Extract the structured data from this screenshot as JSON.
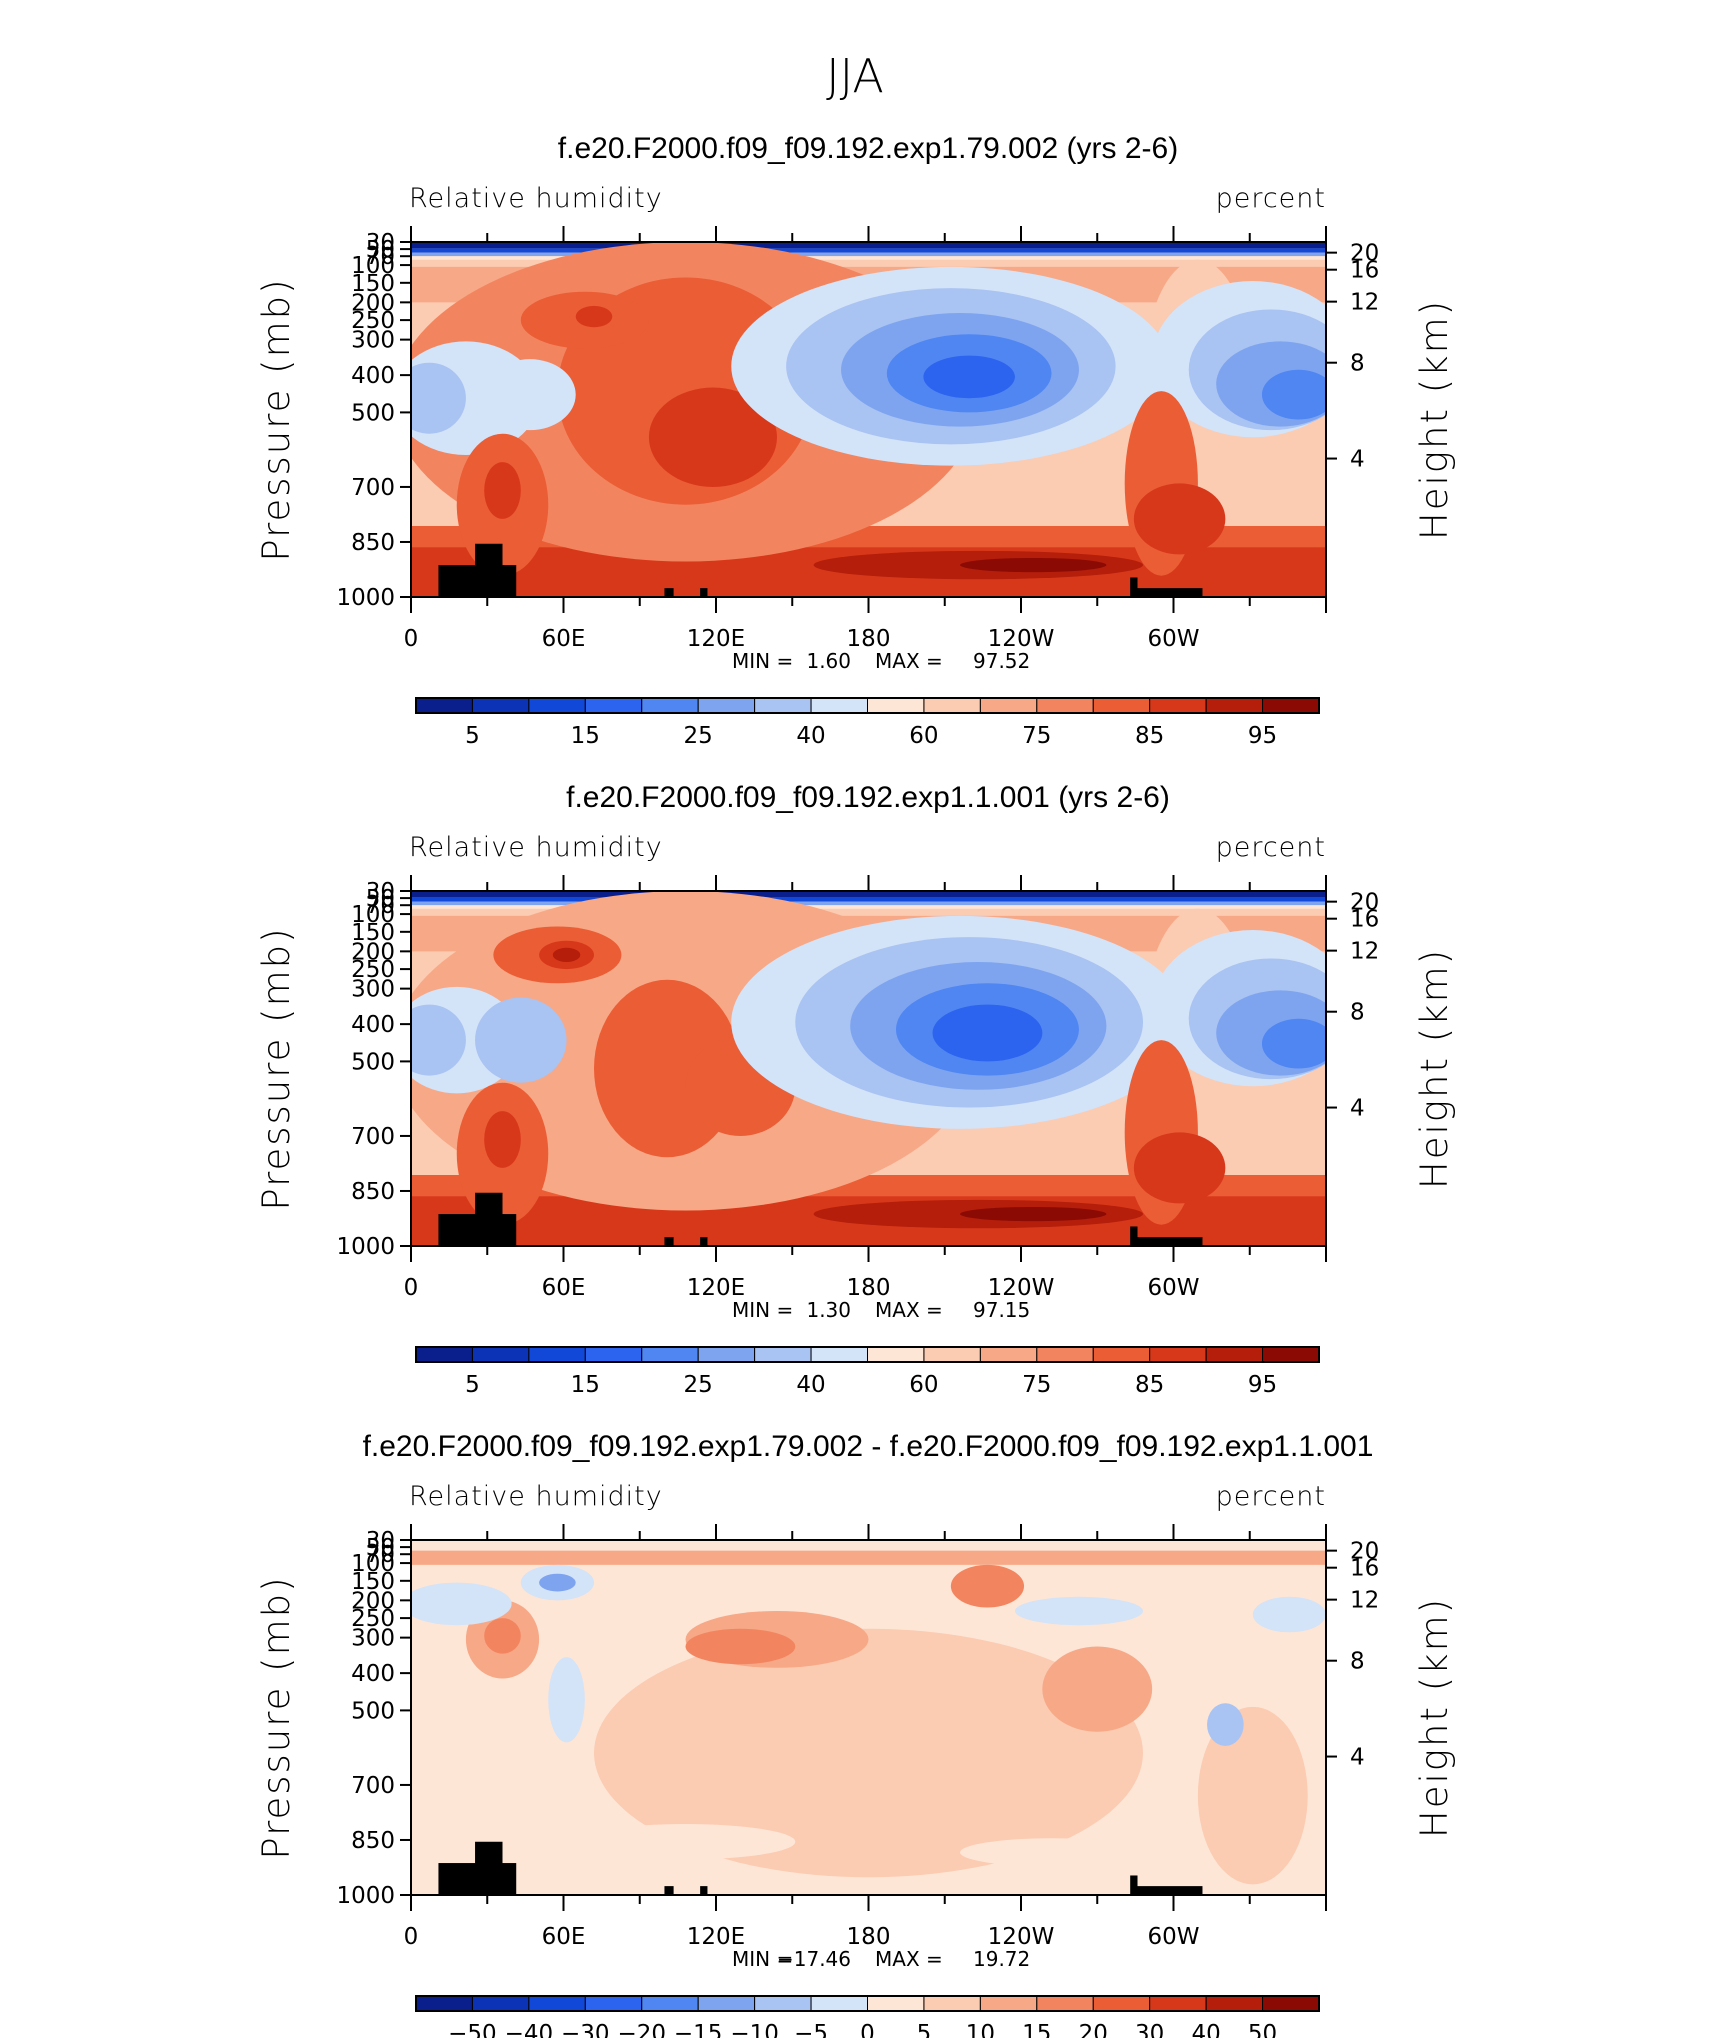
{
  "figure_title": "JJA",
  "chart_data": [
    {
      "type": "heatmap",
      "title": "f.e20.F2000.f09_f09.192.exp1.79.002 (yrs 2-6)",
      "subtitle_left": "Relative humidity",
      "subtitle_right": "percent",
      "ylabel": "Pressure (mb)",
      "ylabel_right": "Height (km)",
      "x_ticks": [
        "0",
        "60E",
        "120E",
        "180",
        "120W",
        "60W"
      ],
      "y_ticks": [
        "30",
        "50",
        "70",
        "100",
        "150",
        "200",
        "250",
        "300",
        "400",
        "500",
        "700",
        "850",
        "1000"
      ],
      "y_ticks_right": [
        "20",
        "16",
        "12",
        "8",
        "4"
      ],
      "min_label": "MIN =",
      "min": "1.60",
      "max_label": "MAX =",
      "max": "97.52",
      "colorbar_ticks": [
        "5",
        "15",
        "25",
        "40",
        "60",
        "75",
        "85",
        "95"
      ]
    },
    {
      "type": "heatmap",
      "title": "f.e20.F2000.f09_f09.192.exp1.1.001 (yrs 2-6)",
      "subtitle_left": "Relative humidity",
      "subtitle_right": "percent",
      "ylabel": "Pressure (mb)",
      "ylabel_right": "Height (km)",
      "x_ticks": [
        "0",
        "60E",
        "120E",
        "180",
        "120W",
        "60W"
      ],
      "y_ticks": [
        "30",
        "50",
        "70",
        "100",
        "150",
        "200",
        "250",
        "300",
        "400",
        "500",
        "700",
        "850",
        "1000"
      ],
      "y_ticks_right": [
        "20",
        "16",
        "12",
        "8",
        "4"
      ],
      "min_label": "MIN =",
      "min": "1.30",
      "max_label": "MAX =",
      "max": "97.15",
      "colorbar_ticks": [
        "5",
        "15",
        "25",
        "40",
        "60",
        "75",
        "85",
        "95"
      ]
    },
    {
      "type": "heatmap",
      "title": "f.e20.F2000.f09_f09.192.exp1.79.002 - f.e20.F2000.f09_f09.192.exp1.1.001",
      "subtitle_left": "Relative humidity",
      "subtitle_right": "percent",
      "ylabel": "Pressure (mb)",
      "ylabel_right": "Height (km)",
      "x_ticks": [
        "0",
        "60E",
        "120E",
        "180",
        "120W",
        "60W"
      ],
      "y_ticks": [
        "30",
        "50",
        "70",
        "100",
        "150",
        "200",
        "250",
        "300",
        "400",
        "500",
        "700",
        "850",
        "1000"
      ],
      "y_ticks_right": [
        "20",
        "16",
        "12",
        "8",
        "4"
      ],
      "min_label": "MIN =",
      "min": "−17.46",
      "max_label": "MAX =",
      "max": "19.72",
      "colorbar_ticks": [
        "−50",
        "−40",
        "−30",
        "−20",
        "−15",
        "−10",
        "−5",
        "0",
        "5",
        "10",
        "15",
        "20",
        "30",
        "40",
        "50"
      ]
    }
  ],
  "colors": {
    "scale": [
      "#0a1f8c",
      "#0c32b5",
      "#1248d8",
      "#2c63ef",
      "#4f86f2",
      "#7ea4f0",
      "#a9c3f2",
      "#d3e3f8",
      "#fde6d6",
      "#fbcbb2",
      "#f7a887",
      "#f2855f",
      "#eb5d35",
      "#d8381a",
      "#b41e0b",
      "#8b0a04"
    ],
    "topography": "#000000"
  }
}
